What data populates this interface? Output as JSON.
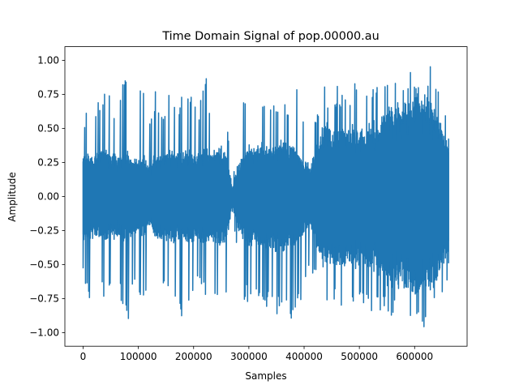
{
  "chart_data": {
    "type": "line",
    "title": "Time Domain Signal of pop.00000.au",
    "xlabel": "Samples",
    "ylabel": "Amplitude",
    "xlim": [
      -33000,
      695000
    ],
    "ylim": [
      -1.1,
      1.1
    ],
    "x_ticks": [
      0,
      100000,
      200000,
      300000,
      400000,
      500000,
      600000
    ],
    "x_tick_labels": [
      "0",
      "100000",
      "200000",
      "300000",
      "400000",
      "500000",
      "600000"
    ],
    "y_ticks": [
      -1.0,
      -0.75,
      -0.5,
      -0.25,
      0.0,
      0.25,
      0.5,
      0.75,
      1.0
    ],
    "y_tick_labels": [
      "−1.00",
      "−0.75",
      "−0.50",
      "−0.25",
      "0.00",
      "0.25",
      "0.50",
      "0.75",
      "1.00"
    ],
    "grid": false,
    "legend": "none",
    "series": [
      {
        "color": "#1f77b4",
        "sample_count": 661504,
        "envelope_x": [
          0,
          10000,
          20000,
          30000,
          40000,
          50000,
          60000,
          70000,
          80000,
          90000,
          100000,
          110000,
          120000,
          130000,
          140000,
          150000,
          160000,
          170000,
          180000,
          190000,
          200000,
          210000,
          220000,
          230000,
          240000,
          250000,
          260000,
          270000,
          280000,
          290000,
          300000,
          310000,
          320000,
          330000,
          340000,
          350000,
          360000,
          370000,
          380000,
          390000,
          400000,
          410000,
          420000,
          430000,
          440000,
          450000,
          460000,
          470000,
          480000,
          490000,
          500000,
          510000,
          520000,
          530000,
          540000,
          550000,
          560000,
          570000,
          580000,
          590000,
          600000,
          610000,
          620000,
          630000,
          640000,
          650000,
          660000
        ],
        "envelope_max": [
          0.41,
          0.82,
          0.72,
          0.75,
          0.9,
          0.72,
          0.65,
          0.85,
          0.95,
          0.62,
          0.72,
          0.95,
          0.55,
          0.78,
          0.72,
          0.65,
          0.9,
          0.72,
          0.75,
          0.86,
          0.7,
          0.65,
          0.98,
          0.65,
          0.72,
          0.85,
          0.62,
          0.12,
          0.4,
          0.7,
          0.75,
          0.72,
          0.85,
          0.65,
          0.72,
          0.7,
          0.92,
          0.65,
          0.72,
          0.82,
          0.62,
          0.55,
          0.65,
          0.75,
          0.85,
          0.72,
          0.85,
          0.78,
          0.72,
          0.87,
          0.75,
          0.72,
          0.85,
          0.82,
          0.75,
          0.88,
          0.92,
          0.98,
          0.9,
          0.95,
          0.98,
          1.0,
          0.98,
          0.95,
          0.88,
          0.75,
          0.6
        ],
        "envelope_min": [
          -0.56,
          -0.78,
          -0.72,
          -0.65,
          -0.85,
          -0.72,
          -0.65,
          -0.78,
          -1.0,
          -0.7,
          -0.75,
          -0.82,
          -0.6,
          -0.72,
          -0.85,
          -0.68,
          -0.8,
          -0.72,
          -0.96,
          -0.78,
          -0.72,
          -0.72,
          -0.75,
          -0.7,
          -0.9,
          -0.82,
          -0.7,
          -0.12,
          -0.45,
          -0.75,
          -0.8,
          -0.72,
          -0.76,
          -0.85,
          -0.72,
          -0.97,
          -0.8,
          -0.85,
          -1.0,
          -0.85,
          -0.65,
          -0.52,
          -0.6,
          -0.7,
          -0.82,
          -0.75,
          -0.85,
          -0.8,
          -0.75,
          -0.88,
          -0.82,
          -0.78,
          -0.88,
          -0.9,
          -0.85,
          -0.92,
          -0.95,
          -0.92,
          -0.98,
          -0.95,
          -1.0,
          -0.98,
          -0.95,
          -0.9,
          -0.95,
          -0.85,
          -0.6
        ],
        "envelope_core": [
          0.3,
          0.3,
          0.28,
          0.3,
          0.32,
          0.3,
          0.28,
          0.3,
          0.32,
          0.25,
          0.25,
          0.28,
          0.2,
          0.3,
          0.28,
          0.3,
          0.32,
          0.3,
          0.3,
          0.32,
          0.3,
          0.3,
          0.35,
          0.3,
          0.32,
          0.35,
          0.3,
          0.06,
          0.22,
          0.3,
          0.35,
          0.32,
          0.38,
          0.35,
          0.35,
          0.38,
          0.38,
          0.35,
          0.38,
          0.3,
          0.25,
          0.22,
          0.3,
          0.45,
          0.5,
          0.45,
          0.48,
          0.5,
          0.45,
          0.5,
          0.48,
          0.45,
          0.5,
          0.52,
          0.55,
          0.6,
          0.62,
          0.65,
          0.62,
          0.65,
          0.68,
          0.7,
          0.68,
          0.65,
          0.6,
          0.5,
          0.4
        ]
      }
    ]
  }
}
